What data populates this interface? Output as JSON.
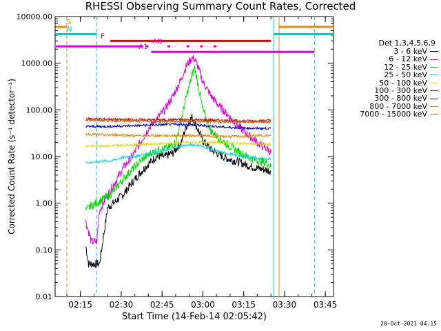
{
  "title": "RHESSI Observing Summary Count Rates, Corrected",
  "timestamp": "20-Oct-2021 04:15",
  "chart_data": {
    "type": "line",
    "title": "RHESSI Observing Summary Count Rates, Corrected",
    "xlabel": "Start Time (14-Feb-14 02:05:42)",
    "ylabel": "Corrected Count Rate (s⁻¹ detector⁻¹)",
    "y_scale": "log",
    "ylim": [
      0.01,
      10000
    ],
    "xlim": [
      "02:05:42",
      "03:48:00"
    ],
    "grid": false,
    "legend_position": "right",
    "x_ticks": [
      "02:15",
      "02:30",
      "02:45",
      "03:00",
      "03:15",
      "03:30",
      "03:45"
    ],
    "y_ticks": [
      "0.01",
      "0.10",
      "1.00",
      "10.00",
      "100.00",
      "1000.00",
      "10000.00"
    ],
    "legend_title": "Det 1,3,4,5,6,9",
    "series": [
      {
        "name": "3 - 6 keV",
        "color": "#000000",
        "x": [
          "02:17",
          "02:18",
          "02:19",
          "02:20",
          "02:21",
          "02:22",
          "02:25",
          "02:28",
          "02:31",
          "02:34",
          "02:37",
          "02:40",
          "02:43",
          "02:46",
          "02:49",
          "02:52",
          "02:54",
          "02:56",
          "02:58",
          "03:00",
          "03:03",
          "03:06",
          "03:09",
          "03:12",
          "03:15",
          "03:18",
          "03:21",
          "03:24",
          "03:25"
        ],
        "values": [
          0.12,
          0.05,
          0.05,
          0.05,
          0.05,
          0.05,
          0.8,
          1.1,
          1.6,
          2.8,
          4.5,
          7,
          10,
          10,
          12,
          20,
          45,
          70,
          40,
          22,
          14,
          11,
          9,
          8,
          7,
          6,
          5.5,
          5,
          5
        ]
      },
      {
        "name": "6 - 12 keV",
        "color": "#dd00dd",
        "x": [
          "02:17",
          "02:19",
          "02:21",
          "02:22",
          "02:25",
          "02:28",
          "02:31",
          "02:34",
          "02:37",
          "02:40",
          "02:43",
          "02:46",
          "02:49",
          "02:52",
          "02:54",
          "02:56",
          "02:57",
          "02:58",
          "03:00",
          "03:03",
          "03:06",
          "03:09",
          "03:12",
          "03:15",
          "03:18",
          "03:21",
          "03:24",
          "03:25"
        ],
        "values": [
          0.4,
          0.15,
          0.15,
          0.7,
          1.5,
          3,
          6,
          10,
          20,
          40,
          65,
          100,
          200,
          450,
          900,
          1300,
          1200,
          900,
          400,
          200,
          120,
          80,
          50,
          35,
          25,
          18,
          14,
          12
        ]
      },
      {
        "name": "12 - 25 keV",
        "color": "#00dd00",
        "x": [
          "02:17",
          "02:19",
          "02:21",
          "02:23",
          "02:26",
          "02:29",
          "02:32",
          "02:35",
          "02:38",
          "02:41",
          "02:44",
          "02:47",
          "02:50",
          "02:52",
          "02:54",
          "02:56",
          "02:57",
          "02:58",
          "03:00",
          "03:03",
          "03:06",
          "03:09",
          "03:12",
          "03:15",
          "03:18",
          "03:21",
          "03:24",
          "03:25"
        ],
        "values": [
          0.7,
          0.9,
          1.0,
          1.2,
          1.5,
          2.5,
          4,
          6,
          9,
          12,
          14,
          15,
          20,
          60,
          200,
          550,
          800,
          400,
          100,
          35,
          25,
          18,
          14,
          11,
          9,
          8,
          7,
          6
        ]
      },
      {
        "name": "25 - 50 keV",
        "color": "#00dddd",
        "x": [
          "02:17",
          "02:20",
          "02:23",
          "02:26",
          "02:29",
          "02:32",
          "02:35",
          "02:38",
          "02:41",
          "02:44",
          "02:47",
          "02:50",
          "02:53",
          "02:56",
          "02:59",
          "03:02",
          "03:05",
          "03:08",
          "03:11",
          "03:14",
          "03:17",
          "03:20",
          "03:23",
          "03:25"
        ],
        "values": [
          7.5,
          7.5,
          8,
          8,
          9,
          10,
          10,
          11,
          12,
          13,
          14,
          16,
          17,
          18,
          17,
          15,
          13,
          12,
          11,
          10,
          10,
          9,
          9,
          9
        ]
      },
      {
        "name": "50 - 100 keV",
        "color": "#dddd00",
        "x": [
          "02:17",
          "02:20",
          "02:25",
          "02:30",
          "02:35",
          "02:40",
          "02:45",
          "02:50",
          "02:55",
          "03:00",
          "03:05",
          "03:10",
          "03:15",
          "03:20",
          "03:25"
        ],
        "values": [
          17,
          17,
          17,
          17.5,
          18,
          18.5,
          19,
          19.5,
          20,
          20,
          20,
          19.5,
          19,
          18.5,
          18
        ]
      },
      {
        "name": "100 - 300 keV",
        "color": "#dd0000",
        "x": [
          "02:17",
          "02:20",
          "02:25",
          "02:30",
          "02:35",
          "02:40",
          "02:45",
          "02:50",
          "02:55",
          "03:00",
          "03:05",
          "03:10",
          "03:15",
          "03:20",
          "03:25"
        ],
        "values": [
          65,
          64,
          63,
          62,
          62,
          61,
          61,
          62,
          62,
          61,
          60,
          59,
          58,
          58,
          60
        ]
      },
      {
        "name": "300 - 800 keV",
        "color": "#0000cc",
        "x": [
          "02:17",
          "02:20",
          "02:25",
          "02:30",
          "02:35",
          "02:40",
          "02:45",
          "02:50",
          "02:55",
          "03:00",
          "03:05",
          "03:10",
          "03:15",
          "03:20",
          "03:25"
        ],
        "values": [
          44,
          44,
          44,
          45,
          46,
          47,
          48,
          49,
          48,
          46,
          44,
          42,
          41,
          40,
          40
        ]
      },
      {
        "name": "800 - 7000 keV",
        "color": "#ee8800",
        "x": [
          "02:17",
          "02:20",
          "02:25",
          "02:30",
          "02:35",
          "02:40",
          "02:45",
          "02:50",
          "02:55",
          "03:00",
          "03:05",
          "03:10",
          "03:15",
          "03:20",
          "03:25"
        ],
        "values": [
          30,
          30,
          29,
          29,
          28,
          28,
          28,
          28,
          28,
          28,
          27,
          27,
          27,
          28,
          28
        ]
      },
      {
        "name": "7000 - 15000 keV",
        "color": "#bb6600",
        "x": [
          "02:17",
          "02:20",
          "02:25",
          "02:30",
          "02:35",
          "02:40",
          "02:45",
          "02:50",
          "02:55",
          "03:00",
          "03:05",
          "03:10",
          "03:15",
          "03:20",
          "03:25"
        ],
        "values": [
          60,
          60,
          59,
          58,
          58,
          57,
          57,
          57,
          57,
          56,
          56,
          55,
          55,
          55,
          56
        ]
      }
    ],
    "vlines": [
      {
        "x": "02:10",
        "color": "#ee8800",
        "style": "dashed"
      },
      {
        "x": "02:21",
        "color": "#00cccc",
        "style": "dashed"
      },
      {
        "x": "03:26",
        "color": "#00cccc",
        "style": "solid"
      },
      {
        "x": "03:28",
        "color": "#ee8800",
        "style": "solid"
      },
      {
        "x": "03:41",
        "color": "#00cccc",
        "style": "dashed"
      }
    ],
    "flag_bars": [
      {
        "label": "S",
        "color": "#ee8800",
        "segments": [
          [
            "02:06",
            "02:10"
          ],
          [
            "03:28",
            "03:48"
          ]
        ],
        "y": 6000
      },
      {
        "label": "N",
        "color": "#00cccc",
        "segments": [
          [
            "02:06",
            "02:21"
          ],
          [
            "03:26",
            "03:48"
          ]
        ],
        "y": 4200
      },
      {
        "label": "F",
        "color": "#ee0000",
        "segments": [
          [
            "02:26",
            "03:25"
          ]
        ],
        "y": 3000
      },
      {
        "label": "AQ",
        "color": "#dd00dd",
        "segments": [
          [
            "02:06",
            "02:38"
          ],
          [
            "02:39",
            "02:40"
          ],
          [
            "02:47",
            "02:48"
          ],
          [
            "02:54",
            "02:55"
          ],
          [
            "02:59",
            "03:00"
          ],
          [
            "03:04",
            "03:05"
          ]
        ],
        "y": 2300
      },
      {
        "label": "A1",
        "color": "#dd00dd",
        "segments": [
          [
            "02:41",
            "03:41"
          ]
        ],
        "y": 1750
      }
    ]
  }
}
